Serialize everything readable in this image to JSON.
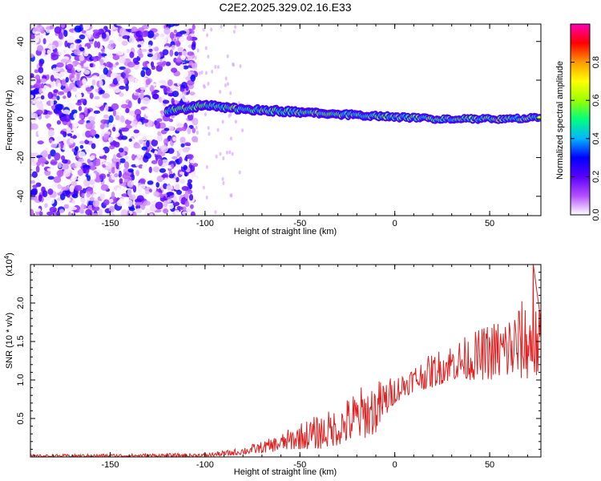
{
  "title": "C2E2.2025.329.02.16.E33",
  "chart_data": [
    {
      "type": "heatmap",
      "xlabel": "Height of straight line (km)",
      "ylabel": "Frequency (Hz)",
      "xlim": [
        -192,
        77
      ],
      "ylim": [
        -50,
        49
      ],
      "xticks": [
        -150,
        -100,
        -50,
        0,
        50
      ],
      "xtick_labels": [
        "-150",
        "-100",
        "-50",
        "0",
        "50"
      ],
      "yticks": [
        -40,
        -20,
        0,
        20,
        40
      ],
      "ytick_labels": [
        "-40",
        "-20",
        "0",
        "20",
        "40"
      ],
      "colorbar": {
        "label": "Normalized spectral amplitude",
        "range": [
          0,
          1
        ],
        "ticks": [
          0.0,
          0.2,
          0.4,
          0.6,
          0.8
        ],
        "tick_labels": [
          "0.0",
          "0.2",
          "0.4",
          "0.6",
          "0.8"
        ],
        "colors": [
          "#ffffff",
          "#b44fff",
          "#5a00ff",
          "#0000ff",
          "#00b4ff",
          "#00ff7f",
          "#9aff00",
          "#ffff00",
          "#ff9a00",
          "#ff0000",
          "#ff00b4"
        ]
      },
      "noise_region_x": [
        -192,
        -105
      ],
      "signal_track": {
        "x": [
          -120,
          -100,
          -80,
          -60,
          -40,
          -20,
          0,
          20,
          40,
          60,
          77
        ],
        "frequency_hz": [
          4,
          7,
          5,
          4,
          3,
          2,
          1,
          0,
          0,
          0,
          1
        ],
        "amplitude": [
          0.3,
          0.5,
          0.6,
          0.55,
          0.6,
          0.65,
          0.75,
          0.85,
          0.85,
          0.85,
          0.8
        ]
      }
    },
    {
      "type": "line",
      "xlabel": "Height of straight line (km)",
      "ylabel": "SNR (10 * v/v)",
      "y_multiplier": "(x10",
      "y_multiplier_exp": "4",
      "y_multiplier_close": ")",
      "xlim": [
        -192,
        77
      ],
      "ylim": [
        0,
        2.5
      ],
      "xticks": [
        -150,
        -100,
        -50,
        0,
        50
      ],
      "xtick_labels": [
        "-150",
        "-100",
        "-50",
        "0",
        "50"
      ],
      "yticks": [
        0.5,
        1.0,
        1.5,
        2.0
      ],
      "ytick_labels": [
        "0.5",
        "1.0",
        "1.5",
        "2.0"
      ],
      "color": "#e02020",
      "envelope": {
        "x": [
          -192,
          -100,
          -85,
          -70,
          -60,
          -50,
          -40,
          -30,
          -20,
          -10,
          0,
          10,
          20,
          30,
          40,
          50,
          60,
          70,
          77
        ],
        "low": [
          0,
          0,
          0.02,
          0.05,
          0.08,
          0.1,
          0.1,
          0.15,
          0.2,
          0.3,
          0.7,
          0.85,
          0.9,
          1.0,
          1.0,
          1.0,
          1.0,
          1.0,
          1.0
        ],
        "high": [
          0.03,
          0.05,
          0.1,
          0.2,
          0.3,
          0.45,
          0.55,
          0.65,
          0.9,
          1.0,
          1.05,
          1.2,
          1.35,
          1.5,
          1.6,
          1.75,
          1.9,
          2.1,
          1.9
        ]
      },
      "peak": {
        "x": 73,
        "y": 2.5
      }
    }
  ]
}
